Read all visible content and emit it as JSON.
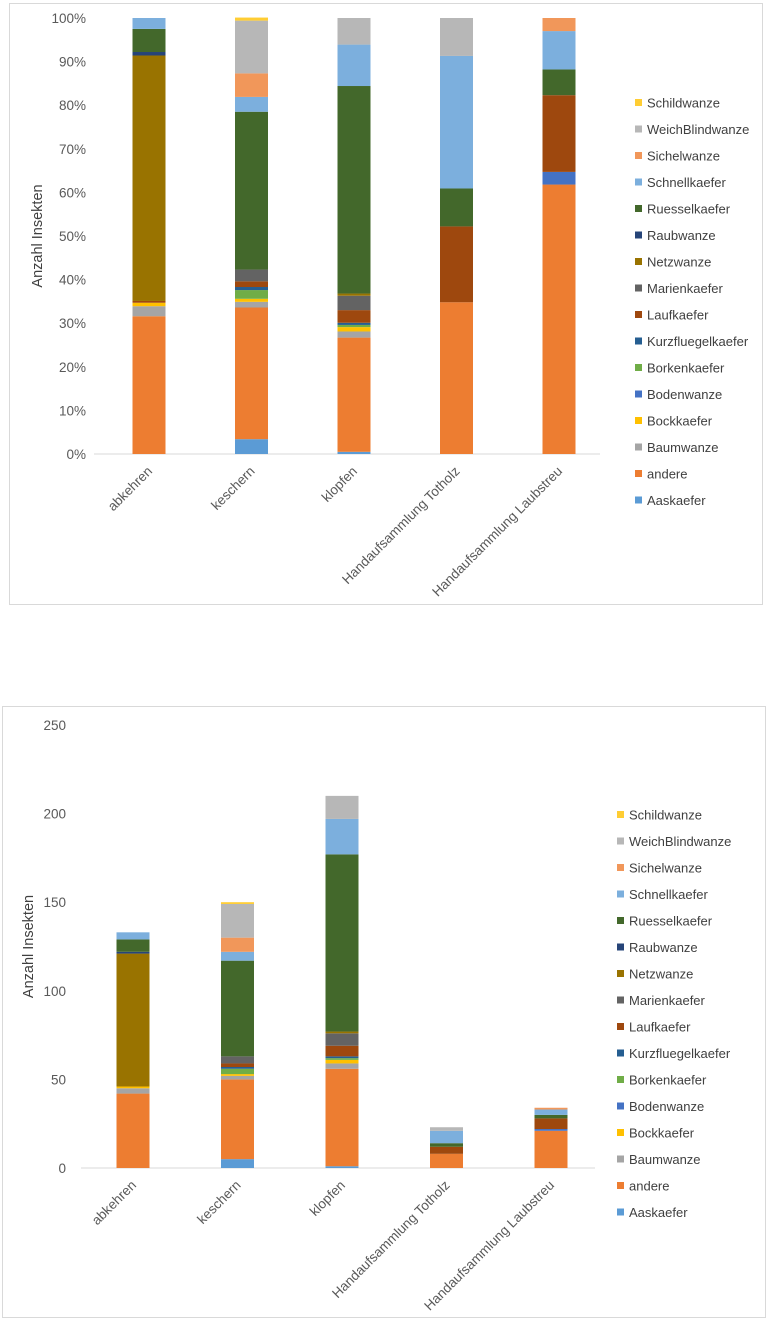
{
  "chart_data": [
    {
      "type": "bar",
      "stacked": "percent",
      "ylabel": "Anzahl Insekten",
      "xlabel": "",
      "categories": [
        "abkehren",
        "keschern",
        "klopfen",
        "Handaufsammlung Totholz",
        "Handaufsammlung Laubstreu"
      ],
      "y_ticks": [
        "0%",
        "10%",
        "20%",
        "30%",
        "40%",
        "50%",
        "60%",
        "70%",
        "80%",
        "90%",
        "100%"
      ],
      "ylim": [
        0,
        100
      ],
      "grid": false,
      "legend_position": "right",
      "series": [
        {
          "name": "Aaskaefer",
          "color": "#5b9bd5",
          "values": [
            0,
            3.4,
            0.5,
            0,
            0
          ]
        },
        {
          "name": "andere",
          "color": "#ed7d31",
          "values": [
            31.6,
            30.2,
            26.2,
            34.8,
            61.8
          ]
        },
        {
          "name": "Baumwanze",
          "color": "#a5a5a5",
          "values": [
            2.3,
            1.3,
            1.4,
            0,
            0
          ]
        },
        {
          "name": "Bockkaefer",
          "color": "#ffc000",
          "values": [
            0.8,
            0.7,
            1.0,
            0,
            0
          ]
        },
        {
          "name": "Bodenwanze",
          "color": "#4472c4",
          "values": [
            0,
            0,
            0,
            0,
            2.9
          ]
        },
        {
          "name": "Borkenkaefer",
          "color": "#70ad47",
          "values": [
            0,
            2.0,
            0.5,
            0,
            0
          ]
        },
        {
          "name": "Kurzfluegelkaefer",
          "color": "#255e91",
          "values": [
            0,
            0.7,
            0.5,
            0,
            0
          ]
        },
        {
          "name": "Laufkaefer",
          "color": "#9e480e",
          "values": [
            0.4,
            1.3,
            2.9,
            17.4,
            17.6
          ]
        },
        {
          "name": "Marienkaefer",
          "color": "#636363",
          "values": [
            0,
            2.7,
            3.3,
            0,
            0
          ]
        },
        {
          "name": "Netzwanze",
          "color": "#997300",
          "values": [
            56.3,
            0,
            0.5,
            0,
            0
          ]
        },
        {
          "name": "Raubwanze",
          "color": "#264478",
          "values": [
            0.8,
            0,
            0,
            0,
            0
          ]
        },
        {
          "name": "Ruesselkaefer",
          "color": "#43682b",
          "values": [
            5.3,
            36.2,
            47.6,
            8.7,
            5.9
          ]
        },
        {
          "name": "Schnellkaefer",
          "color": "#7cafdd",
          "values": [
            2.5,
            3.4,
            9.5,
            30.4,
            8.8
          ]
        },
        {
          "name": "Sichelwanze",
          "color": "#f1975a",
          "values": [
            0,
            5.4,
            0,
            0,
            3.0
          ]
        },
        {
          "name": "WeichBlindwanze",
          "color": "#b7b7b7",
          "values": [
            0,
            12.1,
            6.1,
            8.7,
            0
          ]
        },
        {
          "name": "Schildwanze",
          "color": "#ffcd33",
          "values": [
            0,
            0.7,
            0,
            0,
            0
          ]
        }
      ]
    },
    {
      "type": "bar",
      "stacked": "absolute",
      "ylabel": "Anzahl Insekten",
      "xlabel": "",
      "categories": [
        "abkehren",
        "keschern",
        "klopfen",
        "Handaufsammlung Totholz",
        "Handaufsammlung Laubstreu"
      ],
      "y_ticks": [
        "0",
        "50",
        "100",
        "150",
        "200",
        "250"
      ],
      "ylim": [
        0,
        250
      ],
      "grid": false,
      "legend_position": "right",
      "series": [
        {
          "name": "Aaskaefer",
          "color": "#5b9bd5",
          "values": [
            0,
            5,
            1,
            0,
            0
          ]
        },
        {
          "name": "andere",
          "color": "#ed7d31",
          "values": [
            42,
            45,
            55,
            8,
            21
          ]
        },
        {
          "name": "Baumwanze",
          "color": "#a5a5a5",
          "values": [
            3,
            2,
            3,
            0,
            0
          ]
        },
        {
          "name": "Bockkaefer",
          "color": "#ffc000",
          "values": [
            1,
            1,
            2,
            0,
            0
          ]
        },
        {
          "name": "Bodenwanze",
          "color": "#4472c4",
          "values": [
            0,
            0,
            0,
            0,
            1
          ]
        },
        {
          "name": "Borkenkaefer",
          "color": "#70ad47",
          "values": [
            0,
            3,
            1,
            0,
            0
          ]
        },
        {
          "name": "Kurzfluegelkaefer",
          "color": "#255e91",
          "values": [
            0,
            1,
            1,
            0,
            0
          ]
        },
        {
          "name": "Laufkaefer",
          "color": "#9e480e",
          "values": [
            0,
            2,
            6,
            4,
            6
          ]
        },
        {
          "name": "Marienkaefer",
          "color": "#636363",
          "values": [
            0,
            4,
            7,
            0,
            0
          ]
        },
        {
          "name": "Netzwanze",
          "color": "#997300",
          "values": [
            75,
            0,
            1,
            0,
            0
          ]
        },
        {
          "name": "Raubwanze",
          "color": "#264478",
          "values": [
            1,
            0,
            0,
            0,
            0
          ]
        },
        {
          "name": "Ruesselkaefer",
          "color": "#43682b",
          "values": [
            7,
            54,
            100,
            2,
            2
          ]
        },
        {
          "name": "Schnellkaefer",
          "color": "#7cafdd",
          "values": [
            4,
            5,
            20,
            7,
            3
          ]
        },
        {
          "name": "Sichelwanze",
          "color": "#f1975a",
          "values": [
            0,
            8,
            0,
            0,
            1
          ]
        },
        {
          "name": "WeichBlindwanze",
          "color": "#b7b7b7",
          "values": [
            0,
            19,
            13,
            2,
            0
          ]
        },
        {
          "name": "Schildwanze",
          "color": "#ffcd33",
          "values": [
            0,
            1,
            0,
            0,
            0
          ]
        }
      ]
    }
  ]
}
